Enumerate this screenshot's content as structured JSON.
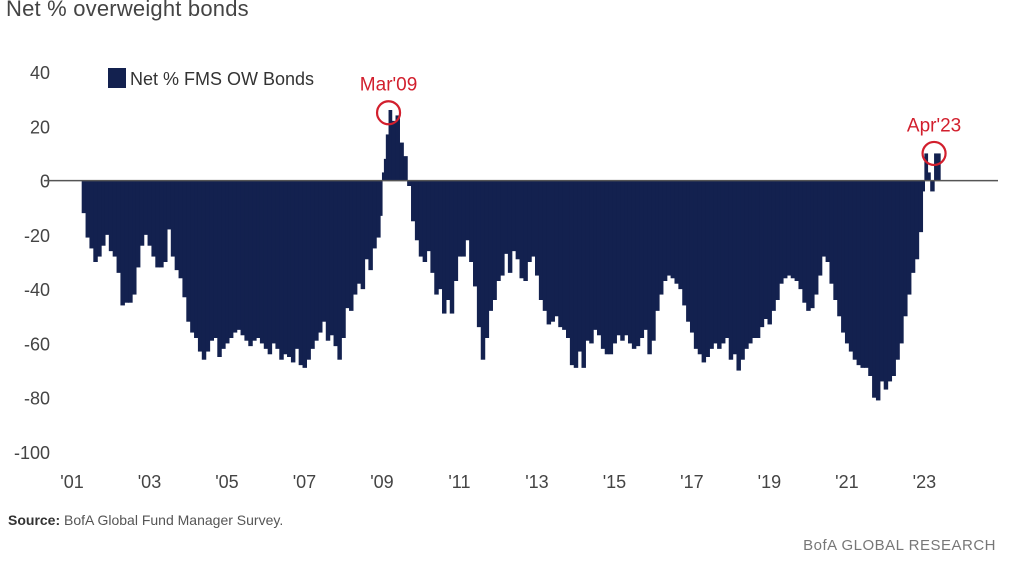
{
  "header": {
    "title": "Net % overweight bonds"
  },
  "footer": {
    "source_label": "Source:",
    "source_text": "BofA Global Fund Manager Survey.",
    "brand": "BofA GLOBAL RESEARCH"
  },
  "colors": {
    "bars": "#13214f",
    "annotation": "#d21f2d",
    "zero_line": "#555555"
  },
  "chart_data": {
    "type": "bar",
    "title": "Net % overweight bonds",
    "xlabel": "",
    "ylabel": "",
    "ylim": [
      -100,
      40
    ],
    "yticks": [
      "40",
      "20",
      "0",
      "-20",
      "-40",
      "-60",
      "-80",
      "-100"
    ],
    "xticks": [
      "'01",
      "'03",
      "'05",
      "'07",
      "'09",
      "'11",
      "'13",
      "'15",
      "'17",
      "'19",
      "'21",
      "'23"
    ],
    "xlim": [
      2001.0,
      2024.9
    ],
    "legend": {
      "position": "top-left",
      "entries": [
        "Net % FMS OW Bonds"
      ]
    },
    "grid": false,
    "annotations": [
      {
        "label": "Mar'09",
        "x": 2009.17,
        "y": 25
      },
      {
        "label": "Apr'23",
        "x": 2023.25,
        "y": 10
      }
    ],
    "series": [
      {
        "name": "Net % FMS OW Bonds",
        "points": [
          [
            2001.25,
            -12
          ],
          [
            2001.35,
            -21
          ],
          [
            2001.45,
            -25
          ],
          [
            2001.55,
            -30
          ],
          [
            2001.65,
            -28
          ],
          [
            2001.75,
            -24
          ],
          [
            2001.85,
            -20
          ],
          [
            2001.95,
            -26
          ],
          [
            2002.05,
            -28
          ],
          [
            2002.15,
            -34
          ],
          [
            2002.25,
            -46
          ],
          [
            2002.35,
            -45
          ],
          [
            2002.45,
            -45
          ],
          [
            2002.55,
            -42
          ],
          [
            2002.65,
            -32
          ],
          [
            2002.75,
            -24
          ],
          [
            2002.85,
            -20
          ],
          [
            2002.95,
            -24
          ],
          [
            2003.05,
            -28
          ],
          [
            2003.15,
            -32
          ],
          [
            2003.25,
            -32
          ],
          [
            2003.35,
            -30
          ],
          [
            2003.45,
            -18
          ],
          [
            2003.55,
            -28
          ],
          [
            2003.65,
            -33
          ],
          [
            2003.75,
            -36
          ],
          [
            2003.85,
            -43
          ],
          [
            2003.95,
            -52
          ],
          [
            2004.05,
            -56
          ],
          [
            2004.15,
            -58
          ],
          [
            2004.25,
            -63
          ],
          [
            2004.35,
            -66
          ],
          [
            2004.45,
            -63
          ],
          [
            2004.55,
            -59
          ],
          [
            2004.65,
            -58
          ],
          [
            2004.75,
            -65
          ],
          [
            2004.85,
            -62
          ],
          [
            2004.95,
            -60
          ],
          [
            2005.05,
            -58
          ],
          [
            2005.15,
            -56
          ],
          [
            2005.25,
            -55
          ],
          [
            2005.35,
            -57
          ],
          [
            2005.45,
            -59
          ],
          [
            2005.55,
            -61
          ],
          [
            2005.65,
            -59
          ],
          [
            2005.75,
            -58
          ],
          [
            2005.85,
            -60
          ],
          [
            2005.95,
            -62
          ],
          [
            2006.05,
            -64
          ],
          [
            2006.15,
            -60
          ],
          [
            2006.25,
            -62
          ],
          [
            2006.35,
            -66
          ],
          [
            2006.45,
            -64
          ],
          [
            2006.55,
            -65
          ],
          [
            2006.65,
            -67
          ],
          [
            2006.75,
            -62
          ],
          [
            2006.85,
            -68
          ],
          [
            2006.95,
            -69
          ],
          [
            2007.05,
            -66
          ],
          [
            2007.15,
            -62
          ],
          [
            2007.25,
            -59
          ],
          [
            2007.35,
            -56
          ],
          [
            2007.45,
            -52
          ],
          [
            2007.55,
            -59
          ],
          [
            2007.65,
            -57
          ],
          [
            2007.75,
            -61
          ],
          [
            2007.85,
            -66
          ],
          [
            2007.95,
            -58
          ],
          [
            2008.05,
            -47
          ],
          [
            2008.15,
            -48
          ],
          [
            2008.25,
            -42
          ],
          [
            2008.35,
            -38
          ],
          [
            2008.45,
            -40
          ],
          [
            2008.55,
            -29
          ],
          [
            2008.65,
            -33
          ],
          [
            2008.75,
            -25
          ],
          [
            2008.85,
            -21
          ],
          [
            2008.95,
            -13
          ],
          [
            2009.0,
            3
          ],
          [
            2009.05,
            8
          ],
          [
            2009.1,
            17
          ],
          [
            2009.17,
            26
          ],
          [
            2009.25,
            22
          ],
          [
            2009.35,
            24
          ],
          [
            2009.45,
            14
          ],
          [
            2009.55,
            9
          ],
          [
            2009.65,
            -2
          ],
          [
            2009.75,
            -15
          ],
          [
            2009.85,
            -22
          ],
          [
            2009.95,
            -28
          ],
          [
            2010.05,
            -30
          ],
          [
            2010.15,
            -26
          ],
          [
            2010.25,
            -34
          ],
          [
            2010.35,
            -42
          ],
          [
            2010.45,
            -40
          ],
          [
            2010.55,
            -49
          ],
          [
            2010.65,
            -44
          ],
          [
            2010.75,
            -49
          ],
          [
            2010.85,
            -37
          ],
          [
            2010.95,
            -28
          ],
          [
            2011.05,
            -28
          ],
          [
            2011.15,
            -22
          ],
          [
            2011.25,
            -30
          ],
          [
            2011.35,
            -39
          ],
          [
            2011.45,
            -54
          ],
          [
            2011.55,
            -66
          ],
          [
            2011.65,
            -58
          ],
          [
            2011.75,
            -48
          ],
          [
            2011.85,
            -44
          ],
          [
            2011.95,
            -37
          ],
          [
            2012.05,
            -35
          ],
          [
            2012.15,
            -27
          ],
          [
            2012.25,
            -34
          ],
          [
            2012.35,
            -26
          ],
          [
            2012.45,
            -29
          ],
          [
            2012.55,
            -36
          ],
          [
            2012.65,
            -37
          ],
          [
            2012.75,
            -30
          ],
          [
            2012.85,
            -28
          ],
          [
            2012.95,
            -35
          ],
          [
            2013.05,
            -44
          ],
          [
            2013.15,
            -48
          ],
          [
            2013.25,
            -53
          ],
          [
            2013.35,
            -52
          ],
          [
            2013.45,
            -50
          ],
          [
            2013.55,
            -54
          ],
          [
            2013.65,
            -55
          ],
          [
            2013.75,
            -58
          ],
          [
            2013.85,
            -68
          ],
          [
            2013.95,
            -69
          ],
          [
            2014.05,
            -63
          ],
          [
            2014.15,
            -69
          ],
          [
            2014.25,
            -59
          ],
          [
            2014.35,
            -60
          ],
          [
            2014.45,
            -55
          ],
          [
            2014.55,
            -57
          ],
          [
            2014.65,
            -62
          ],
          [
            2014.75,
            -64
          ],
          [
            2014.85,
            -64
          ],
          [
            2014.95,
            -60
          ],
          [
            2015.05,
            -57
          ],
          [
            2015.15,
            -59
          ],
          [
            2015.25,
            -57
          ],
          [
            2015.35,
            -60
          ],
          [
            2015.45,
            -62
          ],
          [
            2015.55,
            -61
          ],
          [
            2015.65,
            -58
          ],
          [
            2015.75,
            -55
          ],
          [
            2015.85,
            -64
          ],
          [
            2015.95,
            -59
          ],
          [
            2016.05,
            -48
          ],
          [
            2016.15,
            -42
          ],
          [
            2016.25,
            -37
          ],
          [
            2016.35,
            -35
          ],
          [
            2016.45,
            -36
          ],
          [
            2016.55,
            -38
          ],
          [
            2016.65,
            -40
          ],
          [
            2016.75,
            -46
          ],
          [
            2016.85,
            -52
          ],
          [
            2016.95,
            -56
          ],
          [
            2017.05,
            -62
          ],
          [
            2017.15,
            -64
          ],
          [
            2017.25,
            -67
          ],
          [
            2017.35,
            -65
          ],
          [
            2017.45,
            -62
          ],
          [
            2017.55,
            -60
          ],
          [
            2017.65,
            -62
          ],
          [
            2017.75,
            -60
          ],
          [
            2017.85,
            -58
          ],
          [
            2017.95,
            -66
          ],
          [
            2018.05,
            -64
          ],
          [
            2018.15,
            -70
          ],
          [
            2018.25,
            -66
          ],
          [
            2018.35,
            -62
          ],
          [
            2018.45,
            -60
          ],
          [
            2018.55,
            -58
          ],
          [
            2018.65,
            -58
          ],
          [
            2018.75,
            -54
          ],
          [
            2018.85,
            -51
          ],
          [
            2018.95,
            -53
          ],
          [
            2019.05,
            -48
          ],
          [
            2019.15,
            -44
          ],
          [
            2019.25,
            -38
          ],
          [
            2019.35,
            -36
          ],
          [
            2019.45,
            -35
          ],
          [
            2019.55,
            -36
          ],
          [
            2019.65,
            -37
          ],
          [
            2019.75,
            -40
          ],
          [
            2019.85,
            -45
          ],
          [
            2019.95,
            -48
          ],
          [
            2020.05,
            -47
          ],
          [
            2020.15,
            -42
          ],
          [
            2020.25,
            -35
          ],
          [
            2020.35,
            -28
          ],
          [
            2020.45,
            -30
          ],
          [
            2020.55,
            -38
          ],
          [
            2020.65,
            -44
          ],
          [
            2020.75,
            -50
          ],
          [
            2020.85,
            -56
          ],
          [
            2020.95,
            -60
          ],
          [
            2021.05,
            -63
          ],
          [
            2021.15,
            -66
          ],
          [
            2021.25,
            -68
          ],
          [
            2021.35,
            -69
          ],
          [
            2021.45,
            -69
          ],
          [
            2021.55,
            -72
          ],
          [
            2021.65,
            -80
          ],
          [
            2021.75,
            -81
          ],
          [
            2021.85,
            -74
          ],
          [
            2021.95,
            -77
          ],
          [
            2022.05,
            -74
          ],
          [
            2022.15,
            -72
          ],
          [
            2022.25,
            -66
          ],
          [
            2022.35,
            -60
          ],
          [
            2022.45,
            -50
          ],
          [
            2022.55,
            -42
          ],
          [
            2022.65,
            -34
          ],
          [
            2022.75,
            -29
          ],
          [
            2022.85,
            -19
          ],
          [
            2022.95,
            -4
          ],
          [
            2023.0,
            10
          ],
          [
            2023.08,
            3
          ],
          [
            2023.15,
            -4
          ],
          [
            2023.25,
            10
          ]
        ]
      }
    ]
  }
}
